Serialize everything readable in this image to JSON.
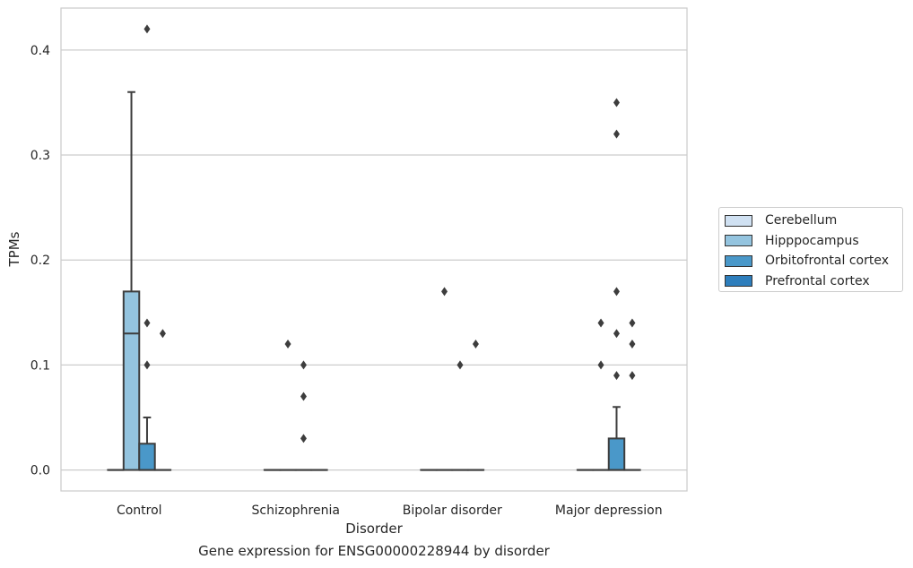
{
  "caption": "Gene expression for ENSG00000228944 by disorder",
  "chart_data": {
    "type": "box",
    "xlabel": "Disorder",
    "ylabel": "TPMs",
    "ylim": [
      -0.02,
      0.44
    ],
    "yticks": [
      0.0,
      0.1,
      0.2,
      0.3,
      0.4
    ],
    "ytick_labels": [
      "0.0",
      "0.1",
      "0.2",
      "0.3",
      "0.4"
    ],
    "grid": "horizontal",
    "legend_position": "right, outside",
    "categories": [
      "Control",
      "Schizophrenia",
      "Bipolar disorder",
      "Major depression"
    ],
    "series": [
      {
        "name": "Cerebellum",
        "color": "#d0e1f2",
        "boxes": [
          {
            "q1": 0,
            "median": 0,
            "q3": 0,
            "whislo": 0,
            "whishi": 0,
            "fliers": []
          },
          {
            "q1": 0,
            "median": 0,
            "q3": 0,
            "whislo": 0,
            "whishi": 0,
            "fliers": []
          },
          {
            "q1": 0,
            "median": 0,
            "q3": 0,
            "whislo": 0,
            "whishi": 0,
            "fliers": []
          },
          {
            "q1": 0,
            "median": 0,
            "q3": 0,
            "whislo": 0,
            "whishi": 0,
            "fliers": []
          }
        ]
      },
      {
        "name": "Hipppocampus",
        "color": "#94c4df",
        "boxes": [
          {
            "q1": 0,
            "median": 0.13,
            "q3": 0.17,
            "whislo": 0,
            "whishi": 0.36,
            "fliers": []
          },
          {
            "q1": 0,
            "median": 0,
            "q3": 0,
            "whislo": 0,
            "whishi": 0,
            "fliers": [
              0.12
            ]
          },
          {
            "q1": 0,
            "median": 0,
            "q3": 0,
            "whislo": 0,
            "whishi": 0,
            "fliers": [
              0.17
            ]
          },
          {
            "q1": 0,
            "median": 0,
            "q3": 0,
            "whislo": 0,
            "whishi": 0,
            "fliers": [
              0.14,
              0.1
            ]
          }
        ]
      },
      {
        "name": "Orbitofrontal cortex",
        "color": "#4a98c9",
        "boxes": [
          {
            "q1": 0,
            "median": 0,
            "q3": 0.025,
            "whislo": 0,
            "whishi": 0.05,
            "fliers": [
              0.42,
              0.14,
              0.1
            ]
          },
          {
            "q1": 0,
            "median": 0,
            "q3": 0,
            "whislo": 0,
            "whishi": 0,
            "fliers": [
              0.1,
              0.07,
              0.03
            ]
          },
          {
            "q1": 0,
            "median": 0,
            "q3": 0,
            "whislo": 0,
            "whishi": 0,
            "fliers": [
              0.1
            ]
          },
          {
            "q1": 0,
            "median": 0,
            "q3": 0.03,
            "whislo": 0,
            "whishi": 0.06,
            "fliers": [
              0.35,
              0.32,
              0.17,
              0.13,
              0.09
            ]
          }
        ]
      },
      {
        "name": "Prefrontal cortex",
        "color": "#2e7ebc",
        "boxes": [
          {
            "q1": 0,
            "median": 0,
            "q3": 0,
            "whislo": 0,
            "whishi": 0,
            "fliers": [
              0.13
            ]
          },
          {
            "q1": 0,
            "median": 0,
            "q3": 0,
            "whislo": 0,
            "whishi": 0,
            "fliers": []
          },
          {
            "q1": 0,
            "median": 0,
            "q3": 0,
            "whislo": 0,
            "whishi": 0,
            "fliers": [
              0.12
            ]
          },
          {
            "q1": 0,
            "median": 0,
            "q3": 0,
            "whislo": 0,
            "whishi": 0,
            "fliers": [
              0.14,
              0.12,
              0.09
            ]
          }
        ]
      }
    ]
  }
}
